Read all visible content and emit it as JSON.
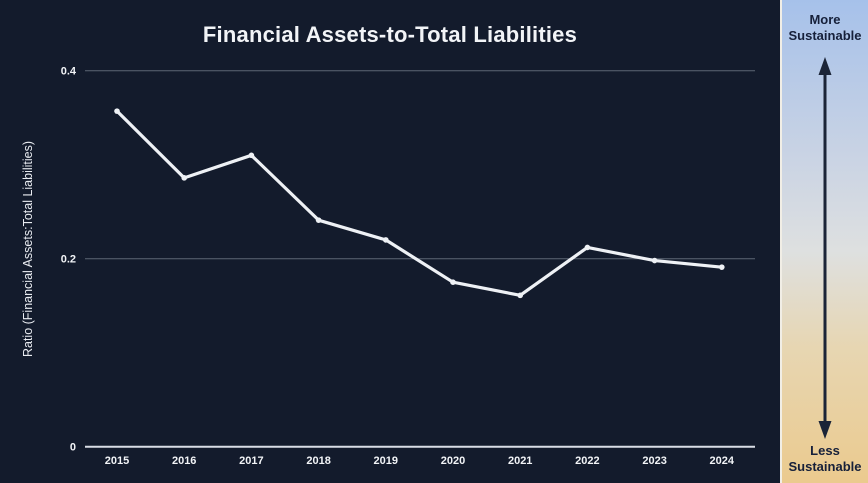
{
  "chart_data": {
    "type": "line",
    "title": "Financial Assets-to-Total Liabilities",
    "ylabel": "Ratio (Financial Assets:Total Liabilities)",
    "xlabel": "",
    "categories": [
      "2015",
      "2016",
      "2017",
      "2018",
      "2019",
      "2020",
      "2021",
      "2022",
      "2023",
      "2024"
    ],
    "series": [
      {
        "name": "Ratio (Financial Assets:Total Liabilities)",
        "values": [
          0.357,
          0.286,
          0.31,
          0.241,
          0.22,
          0.175,
          0.161,
          0.212,
          0.198,
          0.191
        ]
      }
    ],
    "ylim": [
      0,
      0.4
    ],
    "yticks": [
      0,
      0.2,
      0.4
    ],
    "grid": true,
    "legend": "none",
    "colors": {
      "background": "#131b2c",
      "line": "#eef1f5",
      "marker": "#eef1f5",
      "gridline": "#5d6674",
      "axis_line": "#d9dee6",
      "tick_text": "#f2f4f7",
      "title_text": "#f2f4f7"
    }
  },
  "sidebar": {
    "top_label": "More Sustainable",
    "bottom_label": "Less Sustainable",
    "arrow_color": "#1b2437",
    "gradient_top": "#a6c1ea",
    "gradient_bottom": "#ebca8e"
  }
}
